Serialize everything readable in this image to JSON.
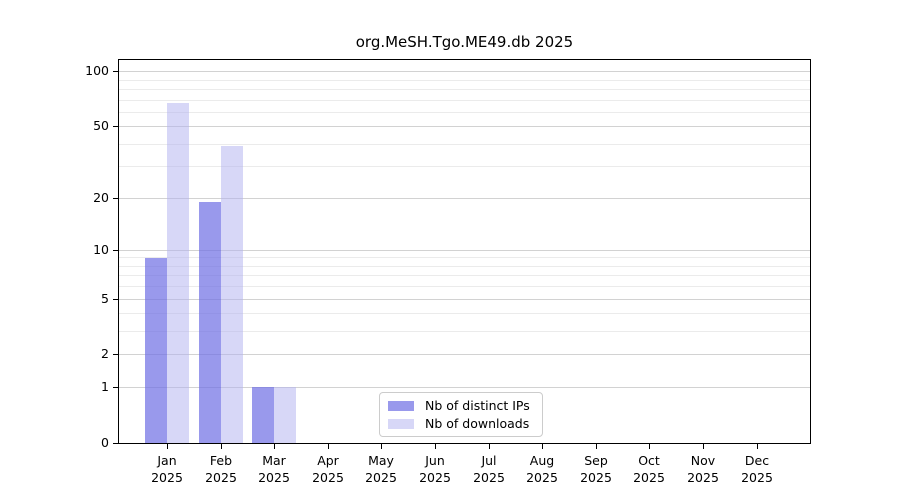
{
  "chart_data": {
    "type": "bar",
    "title": "org.MeSH.Tgo.ME49.db 2025",
    "categories": [
      "Jan",
      "Feb",
      "Mar",
      "Apr",
      "May",
      "Jun",
      "Jul",
      "Aug",
      "Sep",
      "Oct",
      "Nov",
      "Dec"
    ],
    "x_axis": {
      "year_label": "2025"
    },
    "y_axis": {
      "scale": "log1p",
      "min": 0,
      "max": 115,
      "major_ticks": [
        0,
        1,
        2,
        5,
        10,
        20,
        50,
        100
      ],
      "minor_ticks": [
        3,
        4,
        6,
        7,
        8,
        9,
        30,
        40,
        60,
        70,
        80,
        90
      ]
    },
    "series": [
      {
        "name": "Nb of distinct IPs",
        "slug": "distinct-ips",
        "color": "rgba(110,110,228,0.7)",
        "values": [
          9,
          19,
          1,
          0,
          0,
          0,
          0,
          0,
          0,
          0,
          0,
          0
        ]
      },
      {
        "name": "Nb of downloads",
        "slug": "downloads",
        "color": "rgba(175,175,240,0.5)",
        "values": [
          67,
          39,
          1,
          0,
          0,
          0,
          0,
          0,
          0,
          0,
          0,
          0
        ]
      }
    ],
    "legend": {
      "position": "lower-center"
    },
    "grid": true,
    "colors": {
      "grid_major": "#d2d2d2",
      "grid_minor": "#ebebeb",
      "spine": "#000000",
      "background": "#ffffff"
    }
  }
}
